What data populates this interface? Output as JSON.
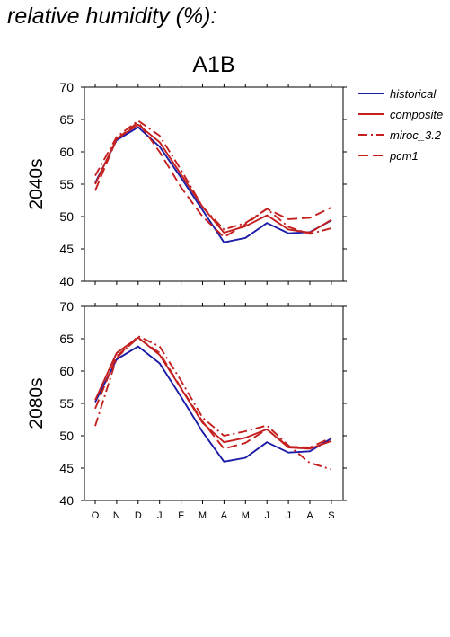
{
  "page_title": "relative humidity (%):",
  "chart_data": {
    "type": "line",
    "title": "A1B",
    "categories": [
      "O",
      "N",
      "D",
      "J",
      "F",
      "M",
      "A",
      "M",
      "J",
      "J",
      "A",
      "S"
    ],
    "ylim": [
      40,
      70
    ],
    "yticks": [
      40,
      45,
      50,
      55,
      60,
      65,
      70
    ],
    "grid": false,
    "legend_position": "right",
    "legend": [
      {
        "name": "historical",
        "color": "#1c1ca8",
        "dash": "solid"
      },
      {
        "name": "composite",
        "color": "#c42020",
        "dash": "solid"
      },
      {
        "name": "miroc_3.2",
        "color": "#c42020",
        "dash": "dash-dot"
      },
      {
        "name": "pcm1",
        "color": "#c42020",
        "dash": "dashed"
      }
    ],
    "panels": [
      {
        "ylabel": "2040s",
        "series": [
          {
            "name": "historical",
            "values": [
              55.2,
              61.8,
              63.8,
              60.8,
              56.0,
              51.0,
              46.0,
              46.7,
              49.0,
              47.4,
              47.6,
              49.4
            ]
          },
          {
            "name": "composite",
            "values": [
              55.0,
              62.0,
              64.2,
              61.5,
              56.5,
              51.5,
              47.5,
              48.5,
              50.2,
              48.0,
              47.5,
              49.5
            ]
          },
          {
            "name": "miroc_3.2",
            "values": [
              56.3,
              62.3,
              64.8,
              62.5,
              57.2,
              51.5,
              48.0,
              49.0,
              51.2,
              48.4,
              47.3,
              48.2
            ]
          },
          {
            "name": "pcm1",
            "values": [
              54.0,
              62.0,
              64.6,
              60.0,
              54.5,
              50.0,
              46.8,
              48.8,
              51.2,
              49.6,
              49.8,
              51.4
            ]
          }
        ]
      },
      {
        "ylabel": "2080s",
        "series": [
          {
            "name": "historical",
            "values": [
              55.2,
              61.8,
              63.8,
              61.2,
              56.0,
              50.6,
              46.0,
              46.6,
              49.0,
              47.4,
              47.6,
              49.6
            ]
          },
          {
            "name": "composite",
            "values": [
              55.5,
              62.8,
              65.2,
              62.5,
              57.3,
              52.0,
              49.0,
              49.7,
              51.0,
              48.2,
              48.0,
              49.2
            ]
          },
          {
            "name": "miroc_3.2",
            "values": [
              51.5,
              62.0,
              65.4,
              63.8,
              58.5,
              52.8,
              50.0,
              50.7,
              51.6,
              48.5,
              45.8,
              44.8
            ]
          },
          {
            "name": "pcm1",
            "values": [
              54.2,
              62.3,
              65.1,
              62.8,
              57.4,
              52.2,
              48.0,
              48.9,
              51.0,
              48.3,
              48.2,
              49.7
            ]
          }
        ]
      }
    ]
  }
}
